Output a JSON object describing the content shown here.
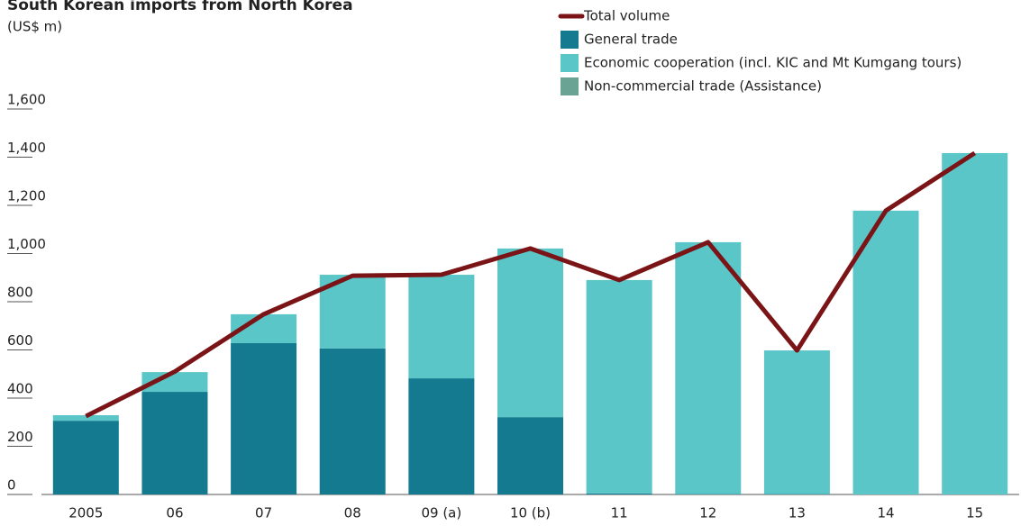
{
  "chart_data": {
    "type": "bar",
    "title": "South Korean imports from North Korea",
    "subtitle": "(US$ m)",
    "categories": [
      "2005",
      "06",
      "07",
      "08",
      "09 (a)",
      "10 (b)",
      "11",
      "12",
      "13",
      "14",
      "15"
    ],
    "series": [
      {
        "name": "General trade",
        "color": "#147a8f",
        "values": [
          306,
          426,
          628,
          606,
          482,
          321,
          4,
          1,
          1,
          0,
          0
        ]
      },
      {
        "name": "Economic cooperation (incl. KIC and Mt Kumgang tours)",
        "color": "#5bc6c8",
        "values": [
          23,
          82,
          120,
          306,
          430,
          700,
          886,
          1046,
          597,
          1178,
          1417
        ]
      },
      {
        "name": "Non-commercial trade (Assistance)",
        "color": "#6aa394",
        "values": [
          0,
          0,
          0,
          0,
          0,
          0,
          0,
          0,
          0,
          0,
          0
        ]
      },
      {
        "name": "Total volume",
        "type": "line",
        "color": "#7a1416",
        "values": [
          325,
          510,
          748,
          908,
          912,
          1021,
          890,
          1047,
          598,
          1178,
          1417
        ]
      }
    ],
    "ylim": [
      0,
      1600
    ],
    "yticks": [
      0,
      200,
      400,
      600,
      800,
      {
        "value": 1000,
        "label": "1,000"
      },
      {
        "value": 1200,
        "label": "1,200"
      },
      {
        "value": 1400,
        "label": "1,400"
      },
      {
        "value": 1600,
        "label": "1,600"
      }
    ],
    "stacked": true
  }
}
